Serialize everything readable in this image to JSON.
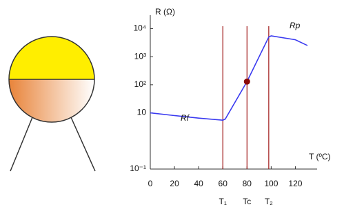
{
  "chart_data": {
    "type": "line",
    "y_label": "R (Ω)",
    "x_label": "T (ºC)",
    "log_y": true,
    "x": [
      0,
      20,
      40,
      60,
      62,
      80,
      98,
      100,
      120,
      130
    ],
    "series": [
      {
        "color": "#3a3af0",
        "values": [
          10,
          8,
          6.5,
          5.5,
          6,
          130,
          5000,
          5500,
          4000,
          2500
        ]
      }
    ],
    "xlim": [
      0,
      138
    ],
    "xticks": [
      0,
      20,
      40,
      60,
      80,
      100,
      120
    ],
    "ylim": [
      0.1,
      30000
    ],
    "yticks": [
      {
        "value": 0.1,
        "label": "10⁻¹"
      },
      10,
      {
        "value": 100,
        "label": "10²"
      },
      {
        "value": 1000,
        "label": "10³"
      },
      {
        "value": 10000,
        "label": "10⁴"
      }
    ],
    "vlines": [
      {
        "x": 60,
        "label": "T₁"
      },
      {
        "x": 80,
        "label": "Tc"
      },
      {
        "x": 98,
        "label": "T₂"
      }
    ],
    "vline_color": "#a01818",
    "marker": {
      "x": 80,
      "y": 130,
      "color": "#8b0a0a"
    },
    "annotations": [
      "Rf",
      "Rp"
    ]
  }
}
